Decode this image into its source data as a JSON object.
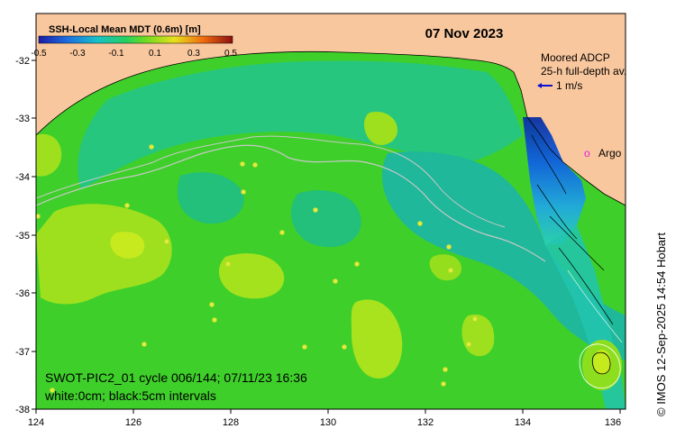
{
  "date": "07 Nov 2023",
  "colorbar": {
    "title": "SSH-Local Mean MDT (0.6m) [m]",
    "ticks": [
      "-0.5",
      "-0.3",
      "-0.1",
      "0.1",
      "0.3",
      "0.5"
    ]
  },
  "moored_adcp": {
    "line1": "Moored ADCP",
    "line2": "25-h full-depth av.",
    "scale": "1 m/s"
  },
  "argo": {
    "symbol": "o",
    "label": "Argo"
  },
  "caption": {
    "line1": "SWOT-PIC2_01 cycle 006/144; 07/11/23 16:36",
    "line2": "white:0cm; black:5cm intervals"
  },
  "credit": "© IMOS 12-Sep-2025 14:54 Hobart",
  "axes": {
    "x_ticks": [
      "124",
      "126",
      "128",
      "130",
      "132",
      "134",
      "136"
    ],
    "y_ticks": [
      "-32",
      "-33",
      "-34",
      "-35",
      "-36",
      "-37",
      "-38"
    ]
  },
  "colors": {
    "land": "#f9c79e",
    "ocean_base": "#3fcf2a",
    "high": "#c8ec1e",
    "low_teal": "#1fb89a",
    "swot_blue": "#0a4fd0"
  }
}
